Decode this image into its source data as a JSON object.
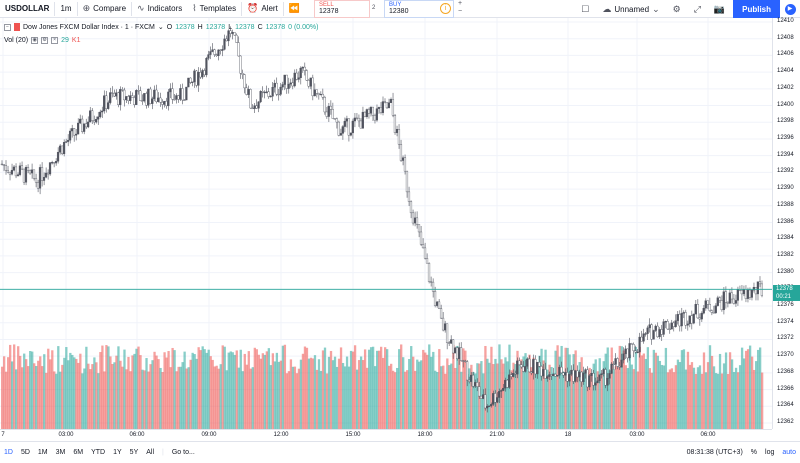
{
  "toolbar": {
    "symbol": "USDOLLAR",
    "interval": "1m",
    "compare": "Compare",
    "indicators": "Indicators",
    "templates": "Templates",
    "alert": "Alert",
    "sell_label": "SELL",
    "sell_price": "12378",
    "spread": "2",
    "buy_label": "BUY",
    "buy_price": "12380",
    "layout_name": "Unnamed",
    "publish": "Publish"
  },
  "legend": {
    "title": "Dow Jones FXCM Dollar Index · 1 · FXCM",
    "o_label": "O",
    "o": "12378",
    "h_label": "H",
    "h": "12378",
    "l_label": "L",
    "l": "12378",
    "c_label": "C",
    "c": "12378",
    "change": "0 (0.00%)",
    "vol_label": "Vol (20)",
    "vol_1": "29",
    "vol_2": "K1"
  },
  "price_axis": {
    "ticks": [
      "12410",
      "12408",
      "12406",
      "12404",
      "12402",
      "12400",
      "12398",
      "12396",
      "12394",
      "12392",
      "12390",
      "12388",
      "12386",
      "12384",
      "12382",
      "12380",
      "12378",
      "12376",
      "12374",
      "12372",
      "12370",
      "12368",
      "12366",
      "12364",
      "12362"
    ],
    "last_price": "12378",
    "countdown": "00:21"
  },
  "time_axis": {
    "ticks": [
      "7",
      "03:00",
      "06:00",
      "09:00",
      "12:00",
      "15:00",
      "18:00",
      "21:00",
      "18",
      "03:00",
      "06:00"
    ]
  },
  "bottom": {
    "ranges": [
      "1D",
      "5D",
      "1M",
      "3M",
      "6M",
      "YTD",
      "1Y",
      "5Y",
      "All"
    ],
    "goto": "Go to...",
    "clock": "08:31:38 (UTC+3)",
    "percent": "%",
    "log": "log",
    "auto": "auto"
  },
  "colors": {
    "up": "#26a69a",
    "down": "#ef5350",
    "accent": "#2962ff"
  },
  "chart_data": {
    "type": "candlestick",
    "symbol": "USDOLLAR",
    "timeframe": "1m",
    "ylim": [
      12362,
      12410
    ],
    "key_points": [
      {
        "t": "00:00",
        "price": 12393
      },
      {
        "t": "02:00",
        "price": 12391
      },
      {
        "t": "04:00",
        "price": 12395
      },
      {
        "t": "06:00",
        "price": 12401
      },
      {
        "t": "08:00",
        "price": 12401
      },
      {
        "t": "09:30",
        "price": 12409
      },
      {
        "t": "11:00",
        "price": 12400
      },
      {
        "t": "13:00",
        "price": 12404
      },
      {
        "t": "15:00",
        "price": 12397
      },
      {
        "t": "16:30",
        "price": 12400
      },
      {
        "t": "17:30",
        "price": 12388
      },
      {
        "t": "18:30",
        "price": 12374
      },
      {
        "t": "20:30",
        "price": 12364
      },
      {
        "t": "22:00",
        "price": 12369
      },
      {
        "t": "00:00",
        "price": 12368
      },
      {
        "t": "02:30",
        "price": 12367
      },
      {
        "t": "03:30",
        "price": 12373
      },
      {
        "t": "05:00",
        "price": 12375
      },
      {
        "t": "07:00",
        "price": 12377
      },
      {
        "t": "08:30",
        "price": 12378
      }
    ],
    "last_price": 12378
  }
}
